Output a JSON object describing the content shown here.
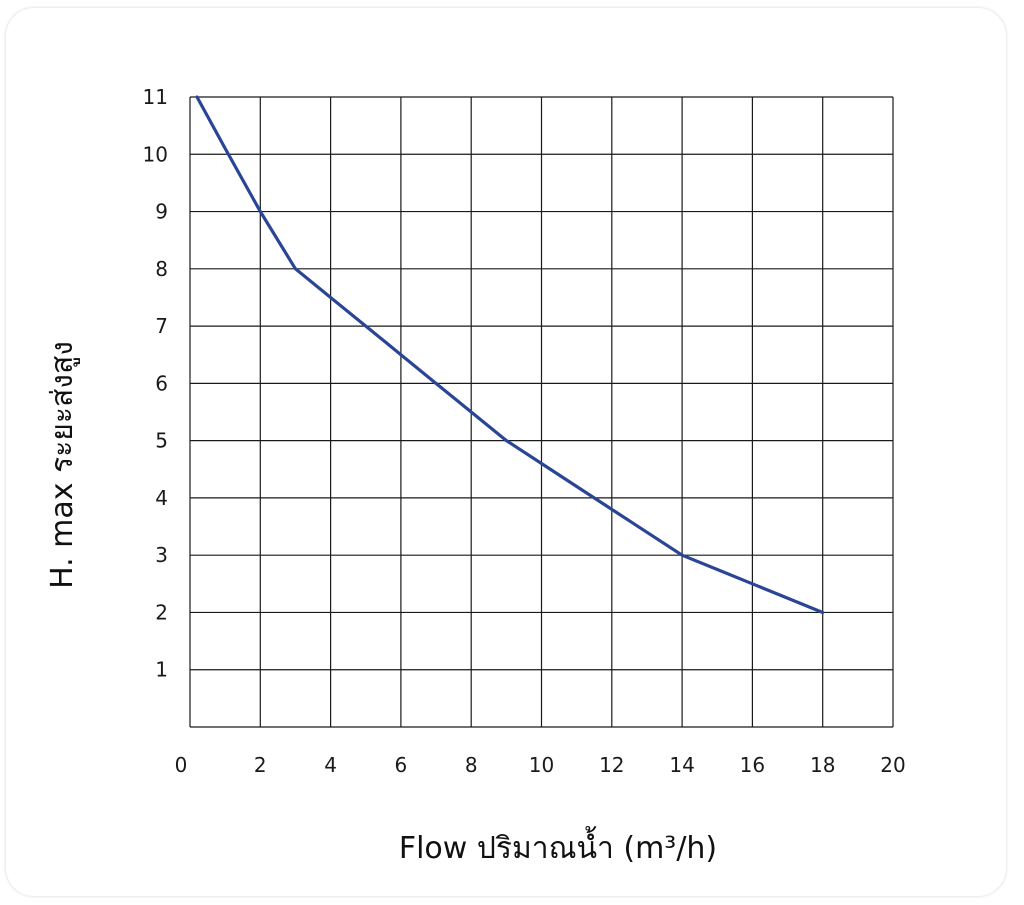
{
  "chart_data": {
    "type": "line",
    "title": "",
    "xlabel": "Flow  ปริมาณน้ำ (m³/h)",
    "ylabel": "H. max  ระยะส่งสูง",
    "xlim": [
      0,
      20
    ],
    "ylim": [
      0,
      11
    ],
    "x_ticks": [
      0,
      2,
      4,
      6,
      8,
      10,
      12,
      14,
      16,
      18,
      20
    ],
    "y_ticks": [
      1,
      2,
      3,
      4,
      5,
      6,
      7,
      8,
      9,
      10,
      11
    ],
    "grid": true,
    "series": [
      {
        "color": "#2b4596",
        "x": [
          0.2,
          1,
          2,
          3,
          4,
          5,
          6,
          7,
          8,
          9,
          10,
          11,
          12,
          13,
          14,
          15,
          16,
          17,
          18
        ],
        "y": [
          11.0,
          10.1,
          9.0,
          8.0,
          7.5,
          7.0,
          6.5,
          6.0,
          5.5,
          5.0,
          4.6,
          4.2,
          3.8,
          3.4,
          3.0,
          2.75,
          2.5,
          2.25,
          2.0
        ]
      }
    ]
  }
}
